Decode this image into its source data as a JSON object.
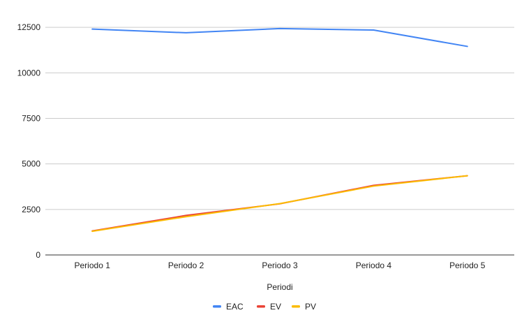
{
  "chart_data": {
    "type": "line",
    "title": "",
    "xlabel": "Periodi",
    "ylabel": "",
    "categories": [
      "Periodo 1",
      "Periodo 2",
      "Periodo 3",
      "Periodo 4",
      "Periodo 5"
    ],
    "ylim": [
      0,
      13500
    ],
    "yticks": [
      0,
      2500,
      5000,
      7500,
      10000,
      12500
    ],
    "grid": true,
    "legend_position": "bottom",
    "series": [
      {
        "name": "EAC",
        "color": "#4285F4",
        "values": [
          12400,
          12200,
          12430,
          12350,
          11450
        ]
      },
      {
        "name": "EV",
        "color": "#EA4335",
        "values": [
          1320,
          2170,
          2810,
          3820,
          4350
        ]
      },
      {
        "name": "PV",
        "color": "#FBBC04",
        "values": [
          1300,
          2100,
          2820,
          3780,
          4350
        ]
      }
    ]
  }
}
